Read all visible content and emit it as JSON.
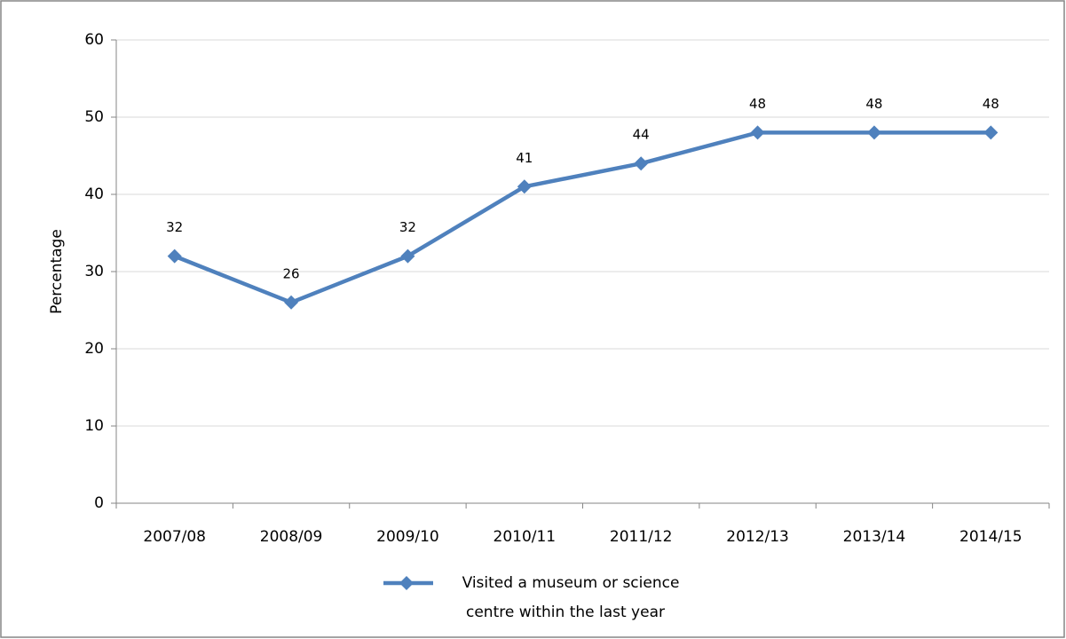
{
  "chart_data": {
    "type": "line",
    "categories": [
      "2007/08",
      "2008/09",
      "2009/10",
      "2010/11",
      "2011/12",
      "2012/13",
      "2013/14",
      "2014/15"
    ],
    "series": [
      {
        "name": "Visited a museum or science centre within the last year",
        "color": "#4f81bd",
        "values": [
          32,
          26,
          32,
          41,
          44,
          48,
          48,
          48
        ]
      }
    ],
    "ylabel": "Percentage",
    "ylim": [
      0,
      60
    ],
    "yticks": [
      0,
      10,
      20,
      30,
      40,
      50,
      60
    ],
    "grid": true,
    "legend": "bottom"
  }
}
